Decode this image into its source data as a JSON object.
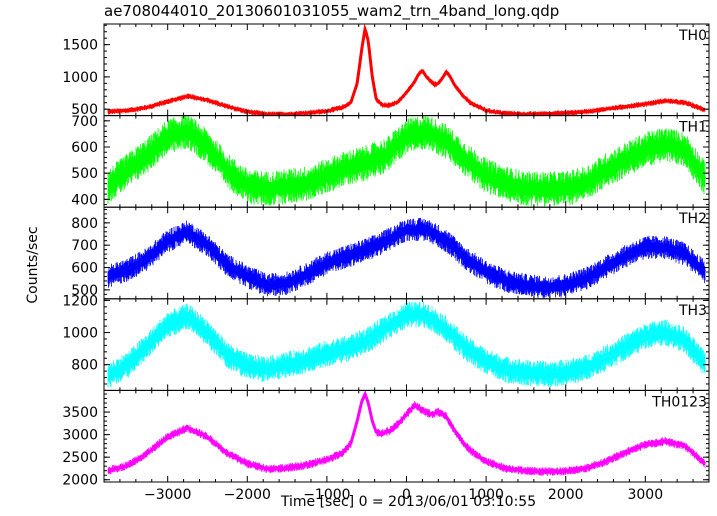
{
  "chart_data": {
    "type": "line",
    "title": "ae708044010_20130601031055_wam2_trn_4band_long.qdp",
    "xlabel": "Time [sec] 0 = 2013/06/01 03:10:55",
    "ylabel": "Counts/sec",
    "xlim": [
      -3800,
      3800
    ],
    "xticks": [
      -3000,
      -2000,
      -1000,
      0,
      1000,
      2000,
      3000
    ],
    "xtick_labels": [
      "−3000",
      "−2000",
      "−1000",
      "0",
      "1000",
      "2000",
      "3000"
    ],
    "grid": false,
    "panels": [
      {
        "name": "TH0",
        "color": "#ff0000",
        "ylim": [
          400,
          1820
        ],
        "yticks": [
          500,
          1000,
          1500
        ],
        "x": [
          -3750,
          -3500,
          -3250,
          -3000,
          -2750,
          -2500,
          -2250,
          -2000,
          -1750,
          -1500,
          -1250,
          -1000,
          -800,
          -700,
          -620,
          -560,
          -520,
          -480,
          -430,
          -380,
          -300,
          -200,
          -100,
          0,
          100,
          150,
          200,
          250,
          300,
          350,
          400,
          450,
          500,
          550,
          600,
          700,
          800,
          900,
          1000,
          1200,
          1500,
          1750,
          2000,
          2250,
          2500,
          2750,
          3000,
          3250,
          3500,
          3750
        ],
        "y": [
          460,
          480,
          530,
          620,
          700,
          640,
          540,
          460,
          420,
          420,
          440,
          470,
          530,
          600,
          900,
          1450,
          1750,
          1550,
          1000,
          650,
          560,
          560,
          620,
          760,
          920,
          1040,
          1100,
          1000,
          940,
          880,
          900,
          980,
          1080,
          1000,
          880,
          720,
          600,
          540,
          480,
          440,
          420,
          430,
          440,
          460,
          500,
          540,
          580,
          630,
          600,
          490
        ],
        "noise": 60
      },
      {
        "name": "TH1",
        "color": "#00ff00",
        "ylim": [
          370,
          720
        ],
        "yticks": [
          400,
          500,
          600,
          700
        ],
        "x": [
          -3750,
          -3500,
          -3250,
          -3000,
          -2750,
          -2500,
          -2250,
          -2000,
          -1750,
          -1500,
          -1250,
          -1000,
          -750,
          -500,
          -250,
          0,
          250,
          500,
          750,
          1000,
          1250,
          1500,
          1750,
          2000,
          2250,
          2500,
          2750,
          3000,
          3250,
          3500,
          3750
        ],
        "y": [
          450,
          510,
          570,
          640,
          660,
          600,
          510,
          450,
          440,
          450,
          460,
          490,
          520,
          540,
          570,
          640,
          660,
          620,
          550,
          490,
          460,
          440,
          440,
          440,
          460,
          510,
          550,
          590,
          610,
          590,
          480
        ],
        "noise": 90
      },
      {
        "name": "TH2",
        "color": "#0000ff",
        "ylim": [
          460,
          870
        ],
        "yticks": [
          500,
          600,
          700,
          800
        ],
        "x": [
          -3750,
          -3500,
          -3250,
          -3000,
          -2750,
          -2500,
          -2250,
          -2000,
          -1750,
          -1500,
          -1250,
          -1000,
          -750,
          -500,
          -250,
          0,
          250,
          500,
          750,
          1000,
          1250,
          1500,
          1750,
          2000,
          2250,
          2500,
          2750,
          3000,
          3250,
          3500,
          3750
        ],
        "y": [
          560,
          590,
          640,
          720,
          760,
          700,
          610,
          560,
          520,
          530,
          570,
          620,
          650,
          680,
          720,
          770,
          770,
          720,
          640,
          580,
          540,
          520,
          510,
          520,
          550,
          600,
          650,
          690,
          690,
          660,
          580
        ],
        "noise": 70
      },
      {
        "name": "TH3",
        "color": "#00ffff",
        "ylim": [
          640,
          1210
        ],
        "yticks": [
          800,
          1000,
          1200
        ],
        "x": [
          -3750,
          -3500,
          -3250,
          -3000,
          -2750,
          -2500,
          -2250,
          -2000,
          -1750,
          -1500,
          -1250,
          -1000,
          -750,
          -500,
          -250,
          0,
          250,
          500,
          750,
          1000,
          1250,
          1500,
          1750,
          2000,
          2250,
          2500,
          2750,
          3000,
          3250,
          3500,
          3750
        ],
        "y": [
          730,
          800,
          920,
          1050,
          1100,
          1000,
          860,
          790,
          770,
          800,
          830,
          870,
          900,
          950,
          1030,
          1110,
          1110,
          1020,
          900,
          820,
          770,
          750,
          740,
          750,
          780,
          840,
          910,
          980,
          1000,
          950,
          800
        ],
        "noise": 110
      },
      {
        "name": "TH0123",
        "color": "#ff00ff",
        "ylim": [
          1950,
          3980
        ],
        "yticks": [
          2000,
          2500,
          3000,
          3500
        ],
        "x": [
          -3750,
          -3500,
          -3250,
          -3000,
          -2750,
          -2500,
          -2250,
          -2000,
          -1750,
          -1500,
          -1250,
          -1000,
          -800,
          -700,
          -620,
          -560,
          -520,
          -480,
          -430,
          -380,
          -300,
          -200,
          -100,
          0,
          100,
          200,
          300,
          400,
          500,
          600,
          700,
          800,
          900,
          1000,
          1250,
          1500,
          1750,
          2000,
          2250,
          2500,
          2750,
          3000,
          3250,
          3500,
          3750
        ],
        "y": [
          2200,
          2320,
          2600,
          2950,
          3150,
          2950,
          2580,
          2360,
          2240,
          2260,
          2330,
          2440,
          2600,
          2800,
          3300,
          3750,
          3900,
          3700,
          3300,
          3050,
          3020,
          3100,
          3250,
          3450,
          3650,
          3550,
          3450,
          3500,
          3400,
          3100,
          2850,
          2650,
          2520,
          2400,
          2250,
          2200,
          2180,
          2190,
          2250,
          2400,
          2600,
          2780,
          2850,
          2750,
          2350
        ],
        "noise": 130
      }
    ]
  }
}
